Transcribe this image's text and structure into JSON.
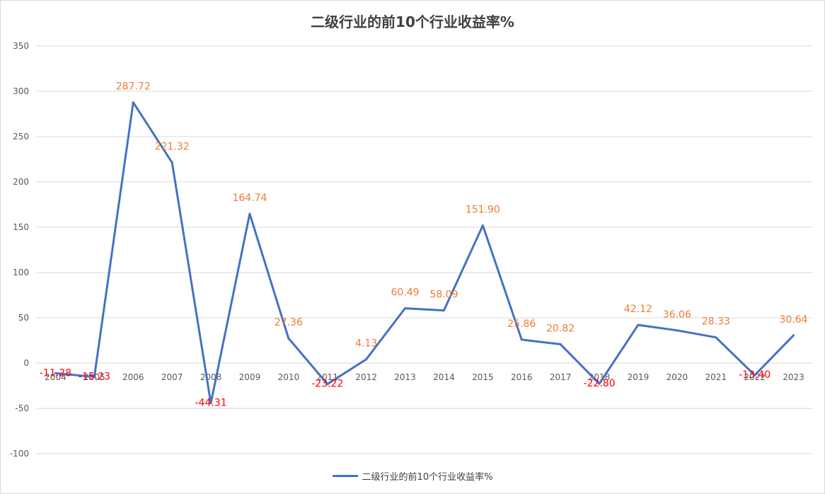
{
  "chart_data": {
    "type": "line",
    "title": "二级行业的前10个行业收益率%",
    "categories": [
      "2004",
      "2005",
      "2006",
      "2007",
      "2008",
      "2009",
      "2010",
      "2011",
      "2012",
      "2013",
      "2014",
      "2015",
      "2016",
      "2017",
      "2018",
      "2019",
      "2020",
      "2021",
      "2022",
      "2023"
    ],
    "series": [
      {
        "name": "二级行业的前10个行业收益率%",
        "values": [
          -11.28,
          -15.23,
          287.72,
          221.32,
          -44.31,
          164.74,
          27.36,
          -23.22,
          4.13,
          60.49,
          58.09,
          151.9,
          25.86,
          20.82,
          -22.8,
          42.12,
          36.06,
          28.33,
          -13.4,
          30.64
        ],
        "data_labels": [
          "-11.28",
          "-15.23",
          "287.72",
          "221.32",
          "-44.31",
          "164.74",
          "27.36",
          "-23.22",
          "4.13",
          "60.49",
          "58.09",
          "151.90",
          "25.86",
          "20.82",
          "-22.80",
          "42.12",
          "36.06",
          "28.33",
          "-13.40",
          "30.64"
        ],
        "color": "#4472c4"
      }
    ],
    "ylim": [
      -100,
      350
    ],
    "yticks": [
      350,
      300,
      250,
      200,
      150,
      100,
      50,
      0,
      -50,
      -100
    ],
    "grid": true,
    "legend_position": "bottom",
    "positive_label_color": "#ed7d31",
    "negative_label_color": "#ff0000",
    "gridline_color": "#d9d9d9",
    "axis_label_color": "#595959"
  }
}
